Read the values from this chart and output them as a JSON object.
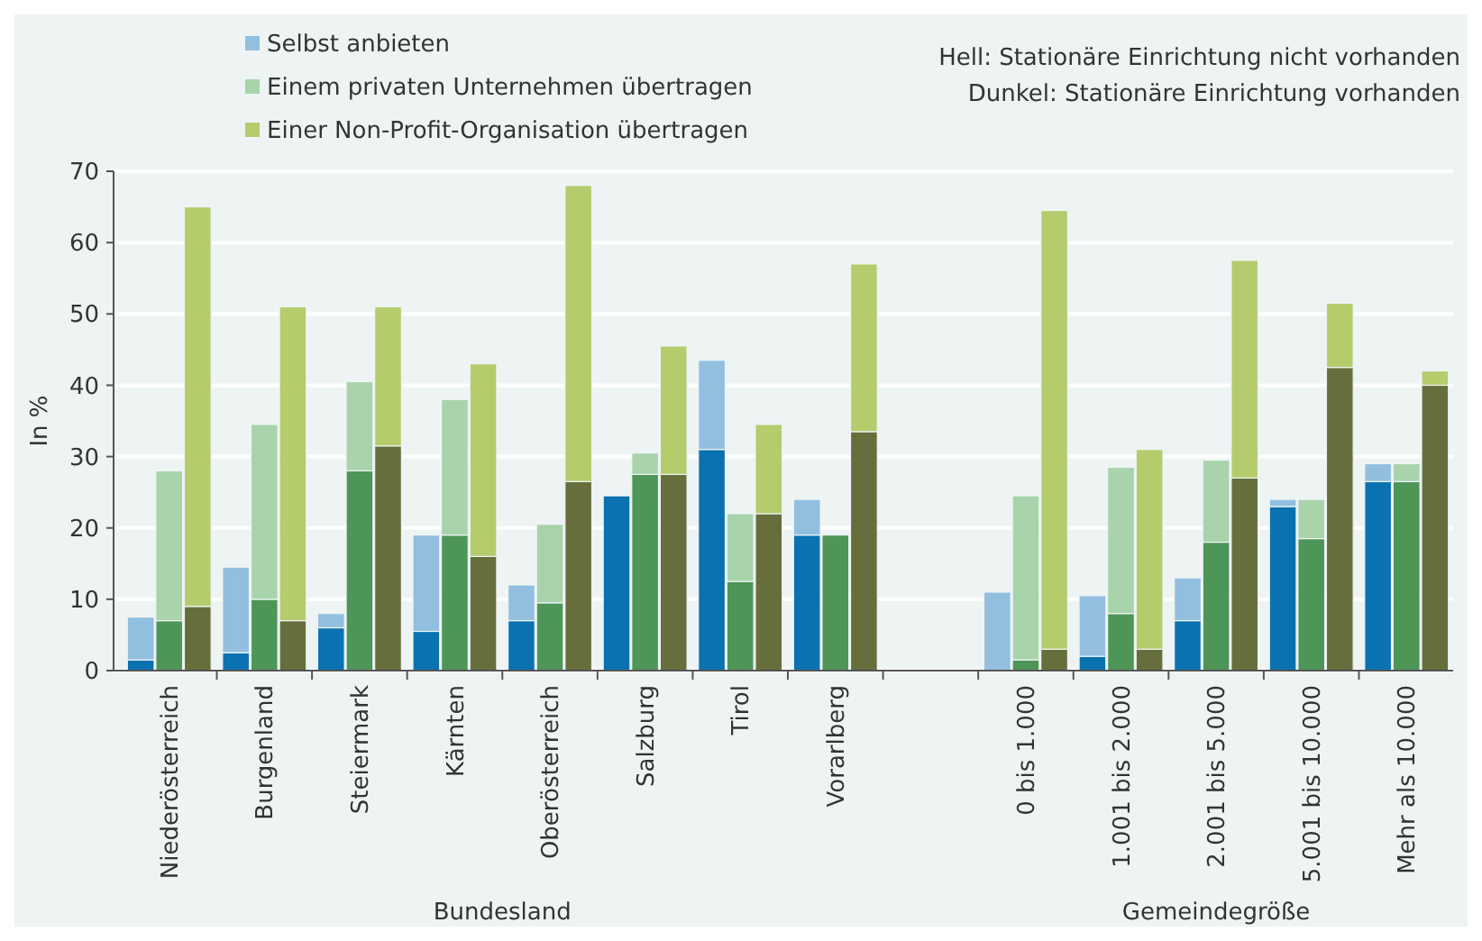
{
  "chart_data": {
    "type": "bar",
    "stacked": true,
    "ylabel": "In %",
    "ylim": [
      0,
      70
    ],
    "yticks": [
      0,
      10,
      20,
      30,
      40,
      50,
      60,
      70
    ],
    "grid": "y",
    "legend": "top left",
    "categories": [
      null,
      "Niederösterreich",
      null,
      null,
      "Burgenland",
      null,
      null,
      "Steiermark",
      null,
      null,
      "Kärnten",
      null,
      null,
      "Oberösterreich",
      null,
      null,
      "Salzburg",
      null,
      null,
      "Tirol",
      null,
      null,
      "Vorarlberg",
      null,
      null,
      null,
      null,
      null,
      "0 bis 1.000",
      null,
      null,
      "1.001 bis 2.000",
      null,
      null,
      "2.001 bis 5.000",
      null,
      null,
      "5.001 bis 10.000",
      null,
      null,
      "Mehr als 10.000",
      null
    ],
    "annotations": [
      "Hell: Stationäre Einrichtung nicht vorhanden",
      "Dunkel: Stationäre Einrichtung vorhanden",
      "Bundesland",
      "Gemeindegröße"
    ],
    "series": [
      {
        "color": "#0a72b0",
        "values": [
          1.5,
          null,
          null,
          2.5,
          null,
          null,
          6,
          null,
          null,
          5.5,
          null,
          null,
          7,
          null,
          null,
          24.5,
          null,
          null,
          31,
          null,
          null,
          19,
          null,
          null,
          null,
          null,
          null,
          0,
          null,
          null,
          2,
          null,
          null,
          7,
          null,
          null,
          23,
          null,
          null,
          26.5,
          null,
          null
        ]
      },
      {
        "name": "Selbst anbieten",
        "color": "#92bfe0",
        "values": [
          6,
          null,
          null,
          12,
          null,
          null,
          2,
          null,
          null,
          13.5,
          null,
          null,
          5,
          null,
          null,
          0,
          null,
          null,
          12.5,
          null,
          null,
          5,
          null,
          null,
          null,
          null,
          null,
          11,
          null,
          null,
          8.5,
          null,
          null,
          6,
          null,
          null,
          1,
          null,
          null,
          2.5,
          null,
          null
        ]
      },
      {
        "color": "#4e9558",
        "values": [
          null,
          7,
          null,
          null,
          10,
          null,
          null,
          28,
          null,
          null,
          19,
          null,
          null,
          9.5,
          null,
          null,
          27.5,
          null,
          null,
          12.5,
          null,
          null,
          19,
          null,
          null,
          null,
          null,
          null,
          1.5,
          null,
          null,
          8,
          null,
          null,
          18,
          null,
          null,
          18.5,
          null,
          null,
          26.5,
          null
        ]
      },
      {
        "name": "Einem privaten Unternehmen übertragen",
        "color": "#a8d3ab",
        "values": [
          null,
          21,
          null,
          null,
          24.5,
          null,
          null,
          12.5,
          null,
          null,
          19,
          null,
          null,
          11,
          null,
          null,
          3,
          null,
          null,
          9.5,
          null,
          null,
          0,
          null,
          null,
          null,
          null,
          null,
          23,
          null,
          null,
          20.5,
          null,
          null,
          11.5,
          null,
          null,
          5.5,
          null,
          null,
          2.5,
          null
        ]
      },
      {
        "color": "#666e3c",
        "values": [
          null,
          null,
          9,
          null,
          null,
          7,
          null,
          null,
          31.5,
          null,
          null,
          16,
          null,
          null,
          26.5,
          null,
          null,
          27.5,
          null,
          null,
          22,
          null,
          null,
          33.5,
          null,
          null,
          null,
          null,
          null,
          3,
          null,
          null,
          3,
          null,
          null,
          27,
          null,
          null,
          42.5,
          null,
          null,
          40
        ]
      },
      {
        "name": "Einer Non-Profit-Organisation übertragen",
        "color": "#b5cc6c",
        "values": [
          null,
          null,
          56,
          null,
          null,
          44,
          null,
          null,
          19.5,
          null,
          null,
          27,
          null,
          null,
          41.5,
          null,
          null,
          18,
          null,
          null,
          12.5,
          null,
          null,
          23.5,
          null,
          null,
          null,
          null,
          null,
          61.5,
          null,
          null,
          28,
          null,
          null,
          30.5,
          null,
          null,
          9,
          null,
          null,
          2
        ]
      }
    ]
  }
}
